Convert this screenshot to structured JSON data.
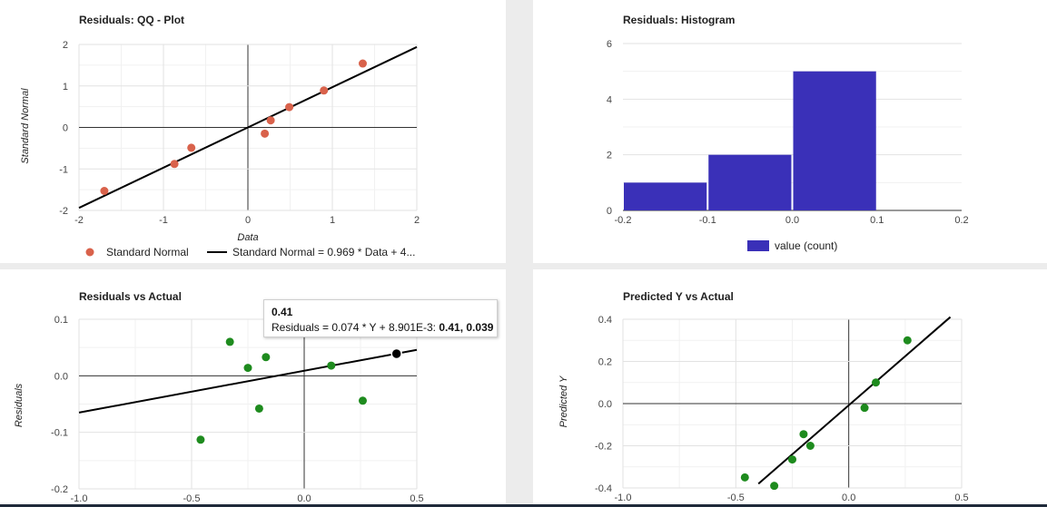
{
  "chart_data": [
    {
      "type": "scatter",
      "title": "Residuals: QQ - Plot",
      "xlabel": "Data",
      "ylabel": "Standard Normal",
      "xlim": [
        -2,
        2
      ],
      "ylim": [
        -2,
        2
      ],
      "xticks": [
        "-2",
        "-1",
        "0",
        "1",
        "2"
      ],
      "yticks": [
        "2",
        "1",
        "0",
        "-1",
        "-2"
      ],
      "points": [
        {
          "x": -1.7,
          "y": -1.53
        },
        {
          "x": -0.87,
          "y": -0.88
        },
        {
          "x": -0.67,
          "y": -0.49
        },
        {
          "x": 0.2,
          "y": -0.15
        },
        {
          "x": 0.27,
          "y": 0.17
        },
        {
          "x": 0.49,
          "y": 0.49
        },
        {
          "x": 0.9,
          "y": 0.89
        },
        {
          "x": 1.36,
          "y": 1.54
        }
      ],
      "fit": {
        "slope": 0.969,
        "intercept": 0
      },
      "legend": {
        "points": "Standard Normal",
        "line": "Standard Normal = 0.969 * Data + 4..."
      },
      "colors": {
        "points": "#d9624b",
        "line": "#000000"
      }
    },
    {
      "type": "bar",
      "title": "Residuals: Histogram",
      "xlim": [
        -0.2,
        0.2
      ],
      "ylim": [
        0,
        6
      ],
      "xticks": [
        "-0.2",
        "-0.1",
        "0.0",
        "0.1",
        "0.2"
      ],
      "yticks": [
        "6",
        "4",
        "2",
        "0"
      ],
      "bins": [
        {
          "from": -0.2,
          "to": -0.1,
          "count": 1
        },
        {
          "from": -0.1,
          "to": 0.0,
          "count": 2
        },
        {
          "from": 0.0,
          "to": 0.1,
          "count": 5
        }
      ],
      "legend": "value (count)",
      "colors": {
        "bar": "#3a30b8"
      }
    },
    {
      "type": "scatter",
      "title": "Residuals vs Actual",
      "xlabel": "",
      "ylabel": "Residuals",
      "xlim": [
        -1.0,
        0.5
      ],
      "ylim": [
        -0.2,
        0.1
      ],
      "xticks": [
        "-1.0",
        "-0.5",
        "0.0",
        "0.5"
      ],
      "yticks": [
        "0.1",
        "0.0",
        "-0.1",
        "-0.2"
      ],
      "points": [
        {
          "x": -0.46,
          "y": -0.113
        },
        {
          "x": -0.33,
          "y": 0.06
        },
        {
          "x": -0.25,
          "y": 0.014
        },
        {
          "x": -0.2,
          "y": -0.058
        },
        {
          "x": -0.17,
          "y": 0.033
        },
        {
          "x": 0.12,
          "y": 0.018
        },
        {
          "x": 0.26,
          "y": -0.044
        },
        {
          "x": 0.41,
          "y": 0.039
        }
      ],
      "fit": {
        "slope": 0.074,
        "intercept": 0.008901
      },
      "highlight": {
        "x": 0.41,
        "y": 0.039
      },
      "tooltip": {
        "title": "0.41",
        "text": "Residuals = 0.074 * Y + 8.901E-3: ",
        "value": "0.41, 0.039"
      },
      "colors": {
        "points": "#1e8b1e",
        "line": "#000000",
        "highlight": "#000000"
      }
    },
    {
      "type": "scatter",
      "title": "Predicted Y vs Actual",
      "xlabel": "",
      "ylabel": "Predicted Y",
      "xlim": [
        -1.0,
        0.5
      ],
      "ylim": [
        -0.4,
        0.4
      ],
      "xticks": [
        "-1.0",
        "-0.5",
        "0.0",
        "0.5"
      ],
      "yticks": [
        "0.4",
        "0.2",
        "0.0",
        "-0.2",
        "-0.4"
      ],
      "points": [
        {
          "x": -0.46,
          "y": -0.35
        },
        {
          "x": -0.33,
          "y": -0.39
        },
        {
          "x": -0.25,
          "y": -0.265
        },
        {
          "x": -0.2,
          "y": -0.145
        },
        {
          "x": -0.17,
          "y": -0.2
        },
        {
          "x": 0.07,
          "y": -0.02
        },
        {
          "x": 0.12,
          "y": 0.1
        },
        {
          "x": 0.26,
          "y": 0.3
        }
      ],
      "fit": {
        "slope": 0.93,
        "intercept": -0.008
      },
      "colors": {
        "points": "#1e8b1e",
        "line": "#000000"
      }
    }
  ]
}
